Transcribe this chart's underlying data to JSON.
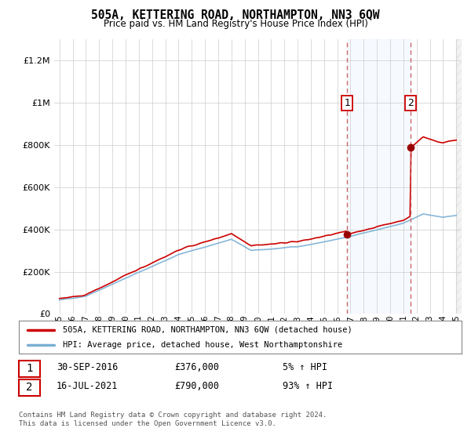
{
  "title": "505A, KETTERING ROAD, NORTHAMPTON, NN3 6QW",
  "subtitle": "Price paid vs. HM Land Registry's House Price Index (HPI)",
  "legend_line1": "505A, KETTERING ROAD, NORTHAMPTON, NN3 6QW (detached house)",
  "legend_line2": "HPI: Average price, detached house, West Northamptonshire",
  "footnote": "Contains HM Land Registry data © Crown copyright and database right 2024.\nThis data is licensed under the Open Government Licence v3.0.",
  "sale1_date": "30-SEP-2016",
  "sale1_price": "£376,000",
  "sale1_pct": "5% ↑ HPI",
  "sale2_date": "16-JUL-2021",
  "sale2_price": "£790,000",
  "sale2_pct": "93% ↑ HPI",
  "sale1_year": 2016.75,
  "sale1_value": 376000,
  "sale2_year": 2021.54,
  "sale2_value": 790000,
  "ylim": [
    0,
    1300000
  ],
  "xlim": [
    1994.6,
    2025.4
  ],
  "line_color_prop": "#cc0000",
  "line_color_hpi": "#7ab0d4",
  "dashed_color": "#cc6666",
  "marker_color": "#990000",
  "bg_color": "#ffffff",
  "grid_color": "#cccccc",
  "shade_color": "#ddeeff",
  "annotation_border": "#cc0000",
  "hatch_color": "#cccccc"
}
